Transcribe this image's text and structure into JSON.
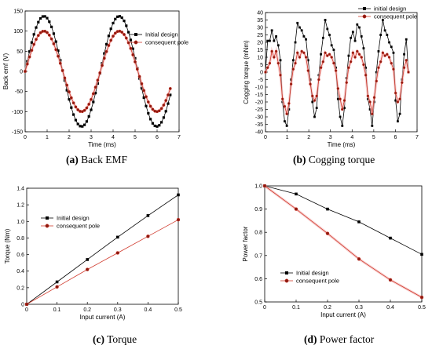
{
  "colors": {
    "initial": "#000000",
    "consequent": "#d0382b",
    "consequent_fill": "#8b1a10",
    "shade": "#f4b8b8"
  },
  "captions": [
    {
      "id": "a",
      "label": "(a)",
      "text": " Back EMF"
    },
    {
      "id": "b",
      "label": "(b)",
      "text": " Cogging torque"
    },
    {
      "id": "c",
      "label": "(c)",
      "text": " Torque"
    },
    {
      "id": "d",
      "label": "(d)",
      "text": " Power factor"
    }
  ],
  "chart_data": [
    {
      "id": "a",
      "type": "line",
      "title": "",
      "xlabel": "Time (ms)",
      "ylabel": "Back emf (V)",
      "xlim": [
        0,
        7
      ],
      "ylim": [
        -150,
        150
      ],
      "xticks": [
        0,
        1,
        2,
        3,
        4,
        5,
        6,
        7
      ],
      "yticks": [
        -150,
        -100,
        -50,
        0,
        50,
        100,
        150
      ],
      "grid": false,
      "legend_position": "right",
      "series": [
        {
          "name": "Initial design",
          "marker": "square",
          "amplitude": 137,
          "period_ms": 3.42,
          "x_range": [
            0,
            6.6
          ]
        },
        {
          "name": "consequent pole",
          "marker": "circle",
          "amplitude": 100,
          "period_ms": 3.42,
          "x_range": [
            0,
            6.6
          ]
        }
      ]
    },
    {
      "id": "b",
      "type": "line",
      "title": "",
      "xlabel": "Time (ms)",
      "ylabel": "Cogging torque (mNm)",
      "xlim": [
        0,
        7
      ],
      "ylim": [
        -40,
        40
      ],
      "xticks": [
        0,
        1,
        2,
        3,
        4,
        5,
        6,
        7
      ],
      "yticks": [
        -40,
        -35,
        -30,
        -25,
        -20,
        -15,
        -10,
        -5,
        0,
        5,
        10,
        15,
        20,
        25,
        30,
        35,
        40
      ],
      "grid": false,
      "legend_position": "top-right",
      "series": [
        {
          "name": "initial design",
          "marker": "square",
          "values": [
            0,
            21,
            21,
            28,
            21,
            24,
            18,
            8,
            -20,
            -33,
            -36,
            -25,
            -5,
            8,
            20,
            33,
            30,
            28,
            24,
            22,
            8,
            -5,
            -20,
            -30,
            -24,
            -2,
            12,
            23,
            35,
            29,
            25,
            18,
            15,
            3,
            -18,
            -30,
            -36,
            -24,
            -4,
            11,
            23,
            27,
            21,
            32,
            30,
            24,
            16,
            3,
            -18,
            -25,
            -36,
            -20,
            0,
            14,
            25,
            35,
            28,
            25,
            20,
            17,
            13,
            -19,
            -33,
            -28,
            -5,
            12,
            22,
            0
          ]
        },
        {
          "name": "consequent pole",
          "marker": "circle",
          "values": [
            0,
            3,
            6,
            14,
            10,
            14,
            6,
            -2,
            -18,
            -23,
            -28,
            -21,
            -8,
            2,
            6,
            13,
            10,
            14,
            13,
            10,
            1,
            -8,
            -16,
            -19,
            -16,
            -5,
            3,
            7,
            13,
            11,
            12,
            10,
            6,
            1,
            -11,
            -18,
            -25,
            -19,
            -7,
            3,
            7,
            13,
            10,
            14,
            12,
            10,
            5,
            -2,
            -16,
            -20,
            -28,
            -17,
            -6,
            3,
            7,
            13,
            11,
            12,
            10,
            6,
            2,
            -14,
            -20,
            -18,
            -7,
            3,
            8,
            0
          ]
        }
      ]
    },
    {
      "id": "c",
      "type": "line",
      "title": "",
      "xlabel": "Input current (A)",
      "ylabel": "Torque (Nm)",
      "xlim": [
        0,
        0.5
      ],
      "ylim": [
        0,
        1.4
      ],
      "xticks": [
        0,
        0.1,
        0.2,
        0.3,
        0.4,
        0.5
      ],
      "yticks": [
        0,
        0.2,
        0.4,
        0.6,
        0.8,
        1.0,
        1.2,
        1.4
      ],
      "grid": false,
      "legend_position": "top-left",
      "x": [
        0,
        0.1,
        0.2,
        0.3,
        0.4,
        0.5
      ],
      "series": [
        {
          "name": "Initial design",
          "marker": "square",
          "values": [
            0,
            0.27,
            0.54,
            0.81,
            1.07,
            1.32
          ]
        },
        {
          "name": "consequent pole",
          "marker": "circle",
          "values": [
            0,
            0.21,
            0.42,
            0.62,
            0.82,
            1.02
          ]
        }
      ]
    },
    {
      "id": "d",
      "type": "line",
      "title": "",
      "xlabel": "Input current (A)",
      "ylabel": "Power factor",
      "xlim": [
        0,
        0.5
      ],
      "ylim": [
        0.5,
        1.0
      ],
      "xticks": [
        0,
        0.1,
        0.2,
        0.3,
        0.4,
        0.5
      ],
      "yticks": [
        0.5,
        0.6,
        0.7,
        0.8,
        0.9,
        1.0
      ],
      "grid": false,
      "legend_position": "bottom-left",
      "x": [
        0,
        0.1,
        0.2,
        0.3,
        0.4,
        0.5
      ],
      "series": [
        {
          "name": "Initial design",
          "marker": "square",
          "values": [
            1.0,
            0.965,
            0.9,
            0.845,
            0.775,
            0.705
          ]
        },
        {
          "name": "consequent pole",
          "marker": "circle",
          "values": [
            1.0,
            0.9,
            0.795,
            0.685,
            0.595,
            0.52
          ]
        }
      ]
    }
  ]
}
